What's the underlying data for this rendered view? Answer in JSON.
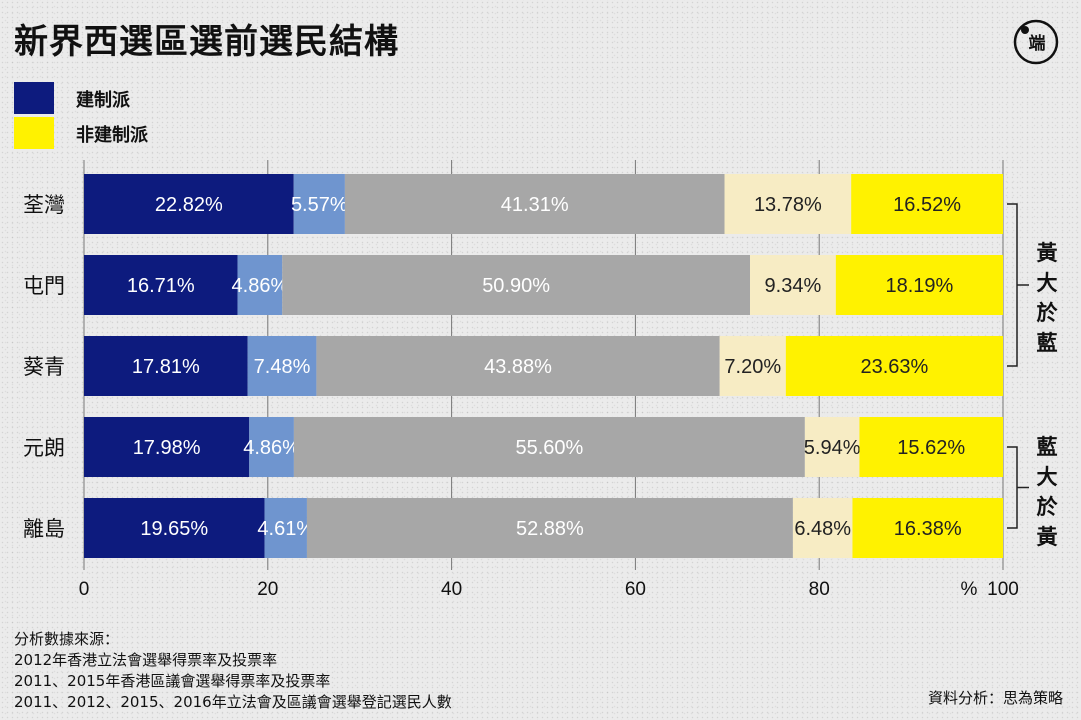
{
  "title": "新界西選區選前選民結構",
  "legend": {
    "items": [
      {
        "label": "建制派",
        "color": "#0d1b7e"
      },
      {
        "label": "非建制派",
        "color": "#fff200"
      }
    ]
  },
  "chart_data": {
    "type": "bar",
    "orientation": "horizontal",
    "stacked": true,
    "categories": [
      "荃灣",
      "屯門",
      "葵青",
      "元朗",
      "離島"
    ],
    "series": [
      {
        "color": "#0d1b7e",
        "values": [
          22.82,
          16.71,
          17.81,
          17.98,
          19.65
        ],
        "labels": [
          "22.82%",
          "16.71%",
          "17.81%",
          "17.98%",
          "19.65%"
        ]
      },
      {
        "color": "#6f95cf",
        "values": [
          5.57,
          4.86,
          7.48,
          4.86,
          4.61
        ],
        "labels": [
          "5.57%",
          "4.86%",
          "7.48%",
          "4.86%",
          "4.61%"
        ]
      },
      {
        "color": "#a7a7a7",
        "values": [
          41.31,
          50.9,
          43.88,
          55.6,
          52.88
        ],
        "labels": [
          "41.31%",
          "50.90%",
          "43.88%",
          "55.60%",
          "52.88%"
        ]
      },
      {
        "color": "#f7ecc4",
        "values": [
          13.78,
          9.34,
          7.2,
          5.94,
          6.48
        ],
        "labels": [
          "13.78%",
          "9.34%",
          "7.20%",
          "5.94%",
          "6.48%"
        ]
      },
      {
        "color": "#fff200",
        "values": [
          16.52,
          18.19,
          23.63,
          15.62,
          16.38
        ],
        "labels": [
          "16.52%",
          "18.19%",
          "23.63%",
          "15.62%",
          "16.38%"
        ]
      }
    ],
    "xlim": [
      0,
      100
    ],
    "xticks": [
      "0",
      "20",
      "40",
      "60",
      "80",
      "100"
    ],
    "x_unit_label": "%",
    "grid": true
  },
  "annotations": [
    {
      "text": "黃大於藍",
      "group": [
        "荃灣",
        "屯門",
        "葵青"
      ]
    },
    {
      "text": "藍大於黃",
      "group": [
        "元朗",
        "離島"
      ]
    }
  ],
  "source": {
    "lines": [
      "分析數據來源：",
      "2012年香港立法會選舉得票率及投票率",
      "2011、2015年香港區議會選舉得票率及投票率",
      "2011、2012、2015、2016年立法會及區議會選舉登記選民人數"
    ]
  },
  "credit": "資料分析：思為策略",
  "logo": {
    "text": "端",
    "icon": "initium-logo-icon"
  }
}
